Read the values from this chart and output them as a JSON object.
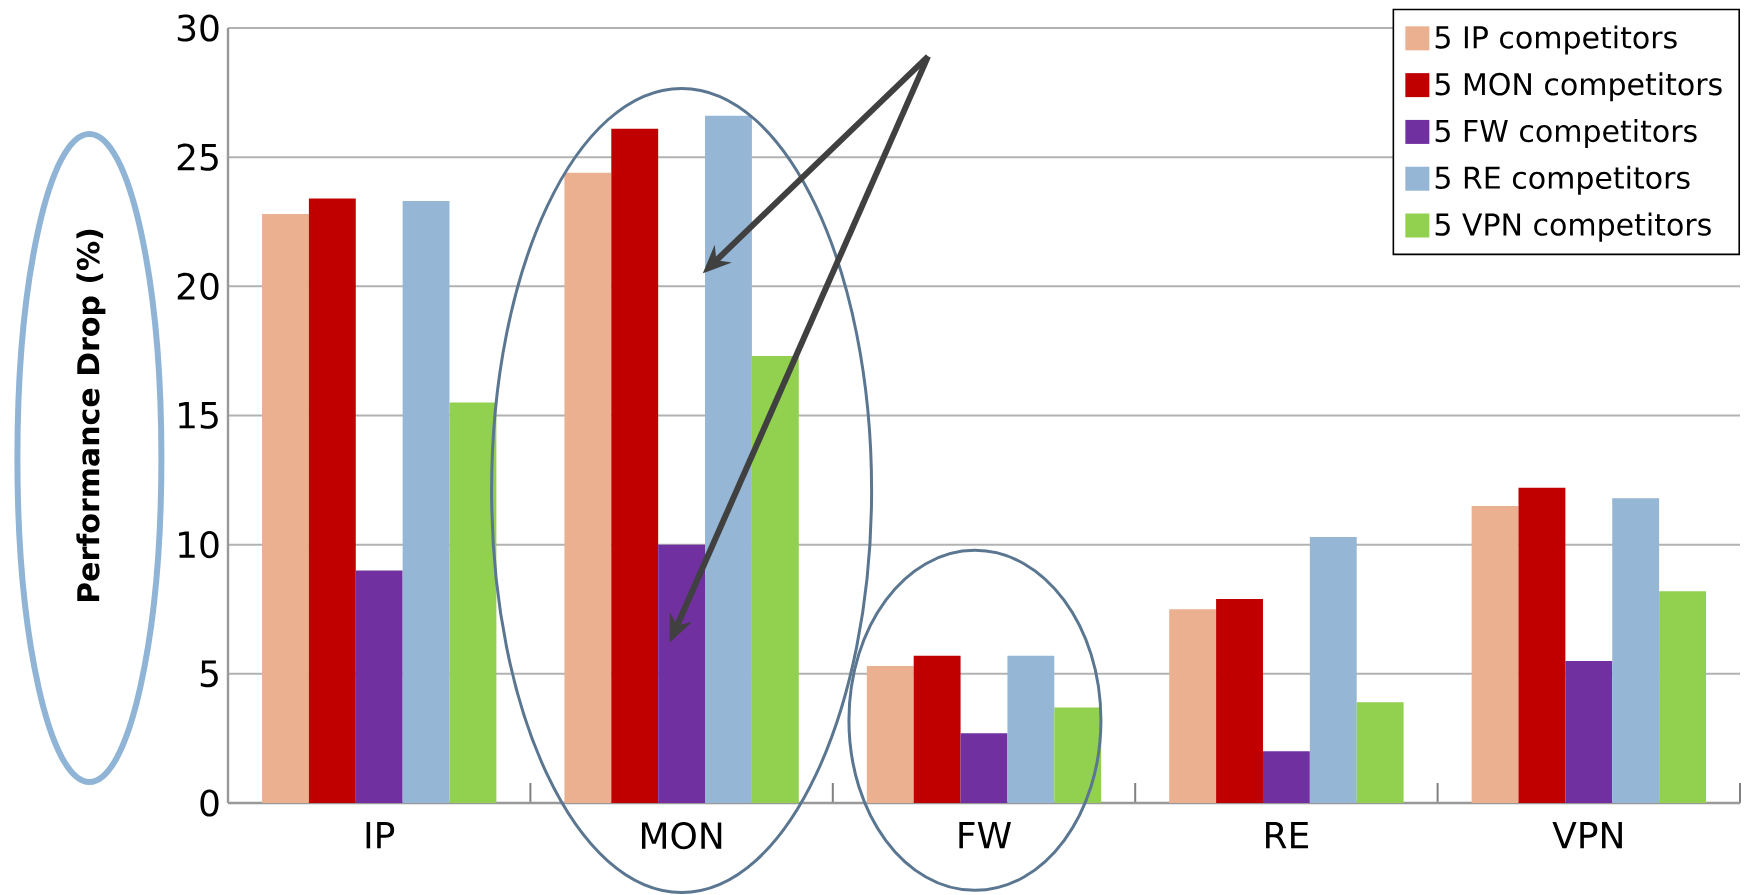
{
  "chart_data": {
    "type": "bar",
    "ylabel": "Performance Drop (%)",
    "categories": [
      "IP",
      "MON",
      "FW",
      "RE",
      "VPN"
    ],
    "series": [
      {
        "name": "5 IP competitors",
        "color": "#ebb08f",
        "values": [
          22.8,
          24.4,
          5.3,
          7.5,
          11.5
        ]
      },
      {
        "name": "5 MON competitors",
        "color": "#c00000",
        "values": [
          23.4,
          26.1,
          5.7,
          7.9,
          12.2
        ]
      },
      {
        "name": "5 FW competitors",
        "color": "#7030a0",
        "values": [
          9.0,
          10.0,
          2.7,
          2.0,
          5.5
        ]
      },
      {
        "name": "5 RE competitors",
        "color": "#95b6d4",
        "values": [
          23.3,
          26.6,
          5.7,
          10.3,
          11.8
        ]
      },
      {
        "name": "5 VPN competitors",
        "color": "#92d050",
        "values": [
          15.5,
          17.3,
          3.7,
          3.9,
          8.2
        ]
      }
    ],
    "ylim": [
      0,
      30
    ],
    "yticks": [
      0,
      5,
      10,
      15,
      20,
      25,
      30
    ],
    "grid": "y",
    "legend": "top right"
  }
}
